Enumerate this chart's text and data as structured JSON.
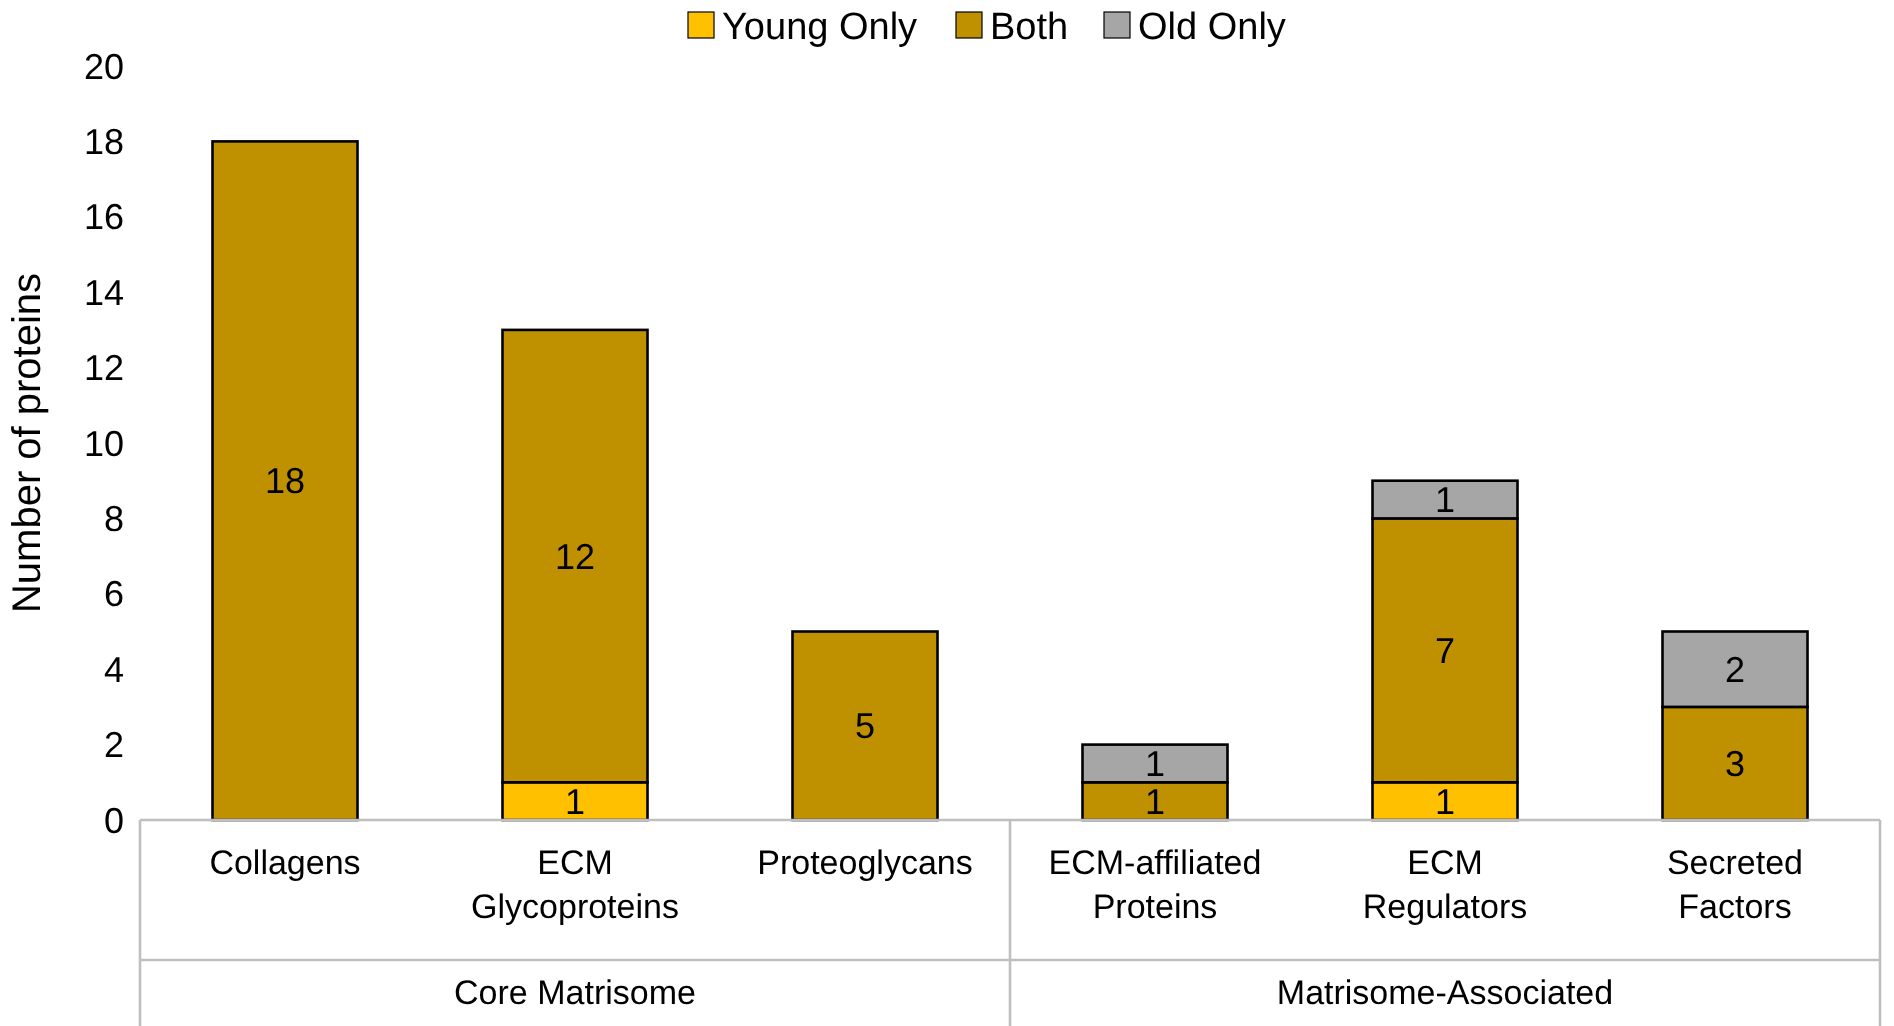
{
  "chart_data": {
    "type": "bar",
    "stacked": true,
    "ylabel": "Number of proteins",
    "categories": [
      "Collagens",
      "ECM Glycoproteins",
      "Proteoglycans",
      "ECM-affiliated Proteins",
      "ECM Regulators",
      "Secreted Factors"
    ],
    "series": [
      {
        "name": "Young Only",
        "color": "#ffc000",
        "values": [
          null,
          1,
          null,
          null,
          1,
          null
        ]
      },
      {
        "name": "Both",
        "color": "#bf9000",
        "values": [
          18,
          12,
          5,
          1,
          7,
          3
        ]
      },
      {
        "name": "Old Only",
        "color": "#a6a6a6",
        "values": [
          null,
          null,
          null,
          1,
          1,
          2
        ]
      }
    ],
    "ylim": [
      0,
      20
    ],
    "yticks": [
      0,
      2,
      4,
      6,
      8,
      10,
      12,
      14,
      16,
      18,
      20
    ],
    "data_labels": true,
    "legend": "top",
    "grid": false,
    "annotations": [
      "Core Matrisome",
      "Matrisome-Associated"
    ]
  }
}
